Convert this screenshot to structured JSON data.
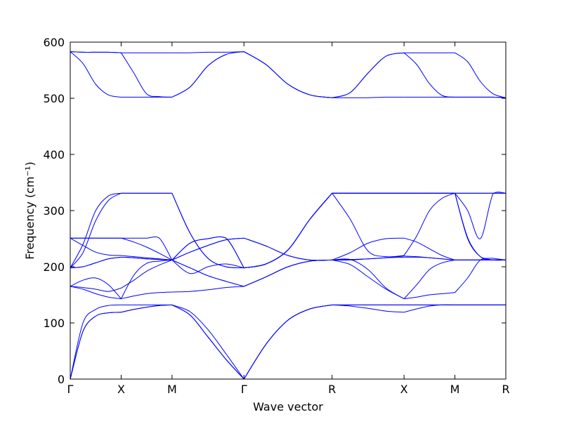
{
  "chart_data": {
    "type": "line",
    "title": "",
    "xlabel": "Wave vector",
    "ylabel": "Frequency (cm⁻¹)",
    "ylim": [
      0,
      600
    ],
    "yticks": [
      0,
      100,
      200,
      300,
      400,
      500,
      600
    ],
    "grid": false,
    "legend": "none",
    "line_color": "#0000ff",
    "path_segments": [
      "Γ-X",
      "X-M",
      "M-Γ",
      "Γ-R",
      "R-X",
      "X-M",
      "M-R"
    ],
    "high_symmetry_points": [
      {
        "label": "Γ",
        "x": 0.0
      },
      {
        "label": "X",
        "x": 1.0
      },
      {
        "label": "M",
        "x": 2.0
      },
      {
        "label": "Γ",
        "x": 3.414
      },
      {
        "label": "R",
        "x": 5.146
      },
      {
        "label": "X",
        "x": 6.56
      },
      {
        "label": "M",
        "x": 7.56
      },
      {
        "label": "R",
        "x": 8.56
      }
    ],
    "x": [
      0.0,
      0.25,
      0.5,
      0.75,
      1.0,
      1.25,
      1.5,
      1.75,
      2.0,
      2.354,
      2.707,
      3.061,
      3.414,
      3.847,
      4.28,
      4.713,
      5.146,
      5.5,
      5.853,
      6.207,
      6.56,
      6.81,
      7.06,
      7.31,
      7.56,
      7.81,
      8.06,
      8.31,
      8.56
    ],
    "series": [
      {
        "values": [
          0,
          85,
          112,
          118,
          119,
          124,
          128,
          131,
          132,
          114,
          75,
          35,
          0,
          62,
          105,
          125,
          132,
          130,
          126,
          121,
          119,
          125,
          130,
          132,
          132,
          132,
          132,
          132,
          132
        ]
      },
      {
        "values": [
          0,
          85,
          112,
          118,
          119,
          124,
          128,
          131,
          132,
          114,
          75,
          35,
          0,
          62,
          105,
          125,
          132,
          132,
          132,
          132,
          132,
          132,
          132,
          132,
          132,
          132,
          132,
          132,
          132
        ]
      },
      {
        "values": [
          0,
          100,
          124,
          131,
          132,
          132,
          132,
          132,
          132,
          120,
          88,
          45,
          0,
          62,
          105,
          125,
          132,
          132,
          132,
          132,
          132,
          132,
          132,
          132,
          132,
          132,
          132,
          132,
          132
        ]
      },
      {
        "values": [
          165,
          160,
          152,
          146,
          143,
          148,
          152,
          154,
          155,
          156,
          159,
          163,
          165,
          182,
          200,
          210,
          212,
          204,
          182,
          160,
          143,
          146,
          150,
          152,
          154,
          180,
          212,
          212,
          212
        ]
      },
      {
        "values": [
          165,
          163,
          160,
          156,
          162,
          176,
          192,
          203,
          212,
          198,
          184,
          174,
          165,
          182,
          200,
          210,
          212,
          213,
          214,
          216,
          219,
          218,
          216,
          214,
          212,
          212,
          212,
          212,
          212
        ]
      },
      {
        "values": [
          165,
          176,
          180,
          168,
          143,
          185,
          206,
          210,
          212,
          198,
          184,
          174,
          165,
          182,
          200,
          210,
          212,
          213,
          195,
          162,
          143,
          168,
          195,
          207,
          212,
          212,
          212,
          212,
          212
        ]
      },
      {
        "values": [
          198,
          200,
          207,
          214,
          217,
          216,
          214,
          213,
          212,
          226,
          238,
          248,
          251,
          237,
          220,
          212,
          212,
          212,
          214,
          216,
          217,
          217,
          216,
          214,
          212,
          212,
          212,
          212,
          212
        ]
      },
      {
        "values": [
          198,
          200,
          207,
          214,
          217,
          216,
          214,
          213,
          212,
          226,
          238,
          248,
          251,
          237,
          220,
          212,
          212,
          225,
          242,
          250,
          251,
          244,
          232,
          220,
          212,
          212,
          212,
          212,
          212
        ]
      },
      {
        "values": [
          251,
          238,
          226,
          221,
          220,
          218,
          216,
          214,
          212,
          188,
          200,
          205,
          198,
          205,
          230,
          285,
          331,
          285,
          228,
          218,
          220,
          255,
          300,
          322,
          331,
          331,
          331,
          331,
          331
        ]
      },
      {
        "values": [
          251,
          251,
          251,
          251,
          251,
          244,
          235,
          224,
          212,
          242,
          250,
          251,
          198,
          205,
          230,
          285,
          331,
          331,
          331,
          331,
          331,
          331,
          331,
          331,
          331,
          331,
          331,
          331,
          331
        ]
      },
      {
        "values": [
          251,
          251,
          251,
          251,
          251,
          251,
          251,
          251,
          212,
          242,
          250,
          251,
          198,
          205,
          230,
          285,
          331,
          331,
          331,
          331,
          331,
          331,
          331,
          331,
          331,
          252,
          218,
          212,
          212
        ]
      },
      {
        "values": [
          198,
          225,
          282,
          318,
          331,
          331,
          331,
          331,
          331,
          260,
          215,
          200,
          198,
          205,
          230,
          285,
          331,
          331,
          331,
          331,
          331,
          331,
          331,
          331,
          331,
          250,
          218,
          215,
          212
        ]
      },
      {
        "values": [
          198,
          240,
          300,
          326,
          331,
          331,
          331,
          331,
          331,
          260,
          215,
          200,
          198,
          205,
          230,
          285,
          331,
          331,
          331,
          331,
          331,
          331,
          331,
          331,
          331,
          300,
          250,
          330,
          331
        ]
      },
      {
        "values": [
          583,
          582,
          582,
          582,
          581,
          581,
          581,
          581,
          581,
          581,
          582,
          582,
          583,
          560,
          525,
          506,
          501,
          510,
          545,
          575,
          581,
          581,
          581,
          581,
          581,
          565,
          530,
          508,
          501
        ]
      },
      {
        "values": [
          583,
          562,
          525,
          506,
          502,
          502,
          502,
          502,
          502,
          520,
          558,
          578,
          583,
          560,
          525,
          506,
          501,
          501,
          501,
          502,
          502,
          502,
          502,
          502,
          502,
          502,
          502,
          502,
          501
        ]
      },
      {
        "values": [
          583,
          582,
          582,
          582,
          581,
          545,
          508,
          503,
          502,
          520,
          558,
          578,
          583,
          560,
          525,
          506,
          501,
          510,
          545,
          575,
          581,
          560,
          526,
          505,
          502,
          502,
          502,
          502,
          501
        ]
      }
    ]
  }
}
